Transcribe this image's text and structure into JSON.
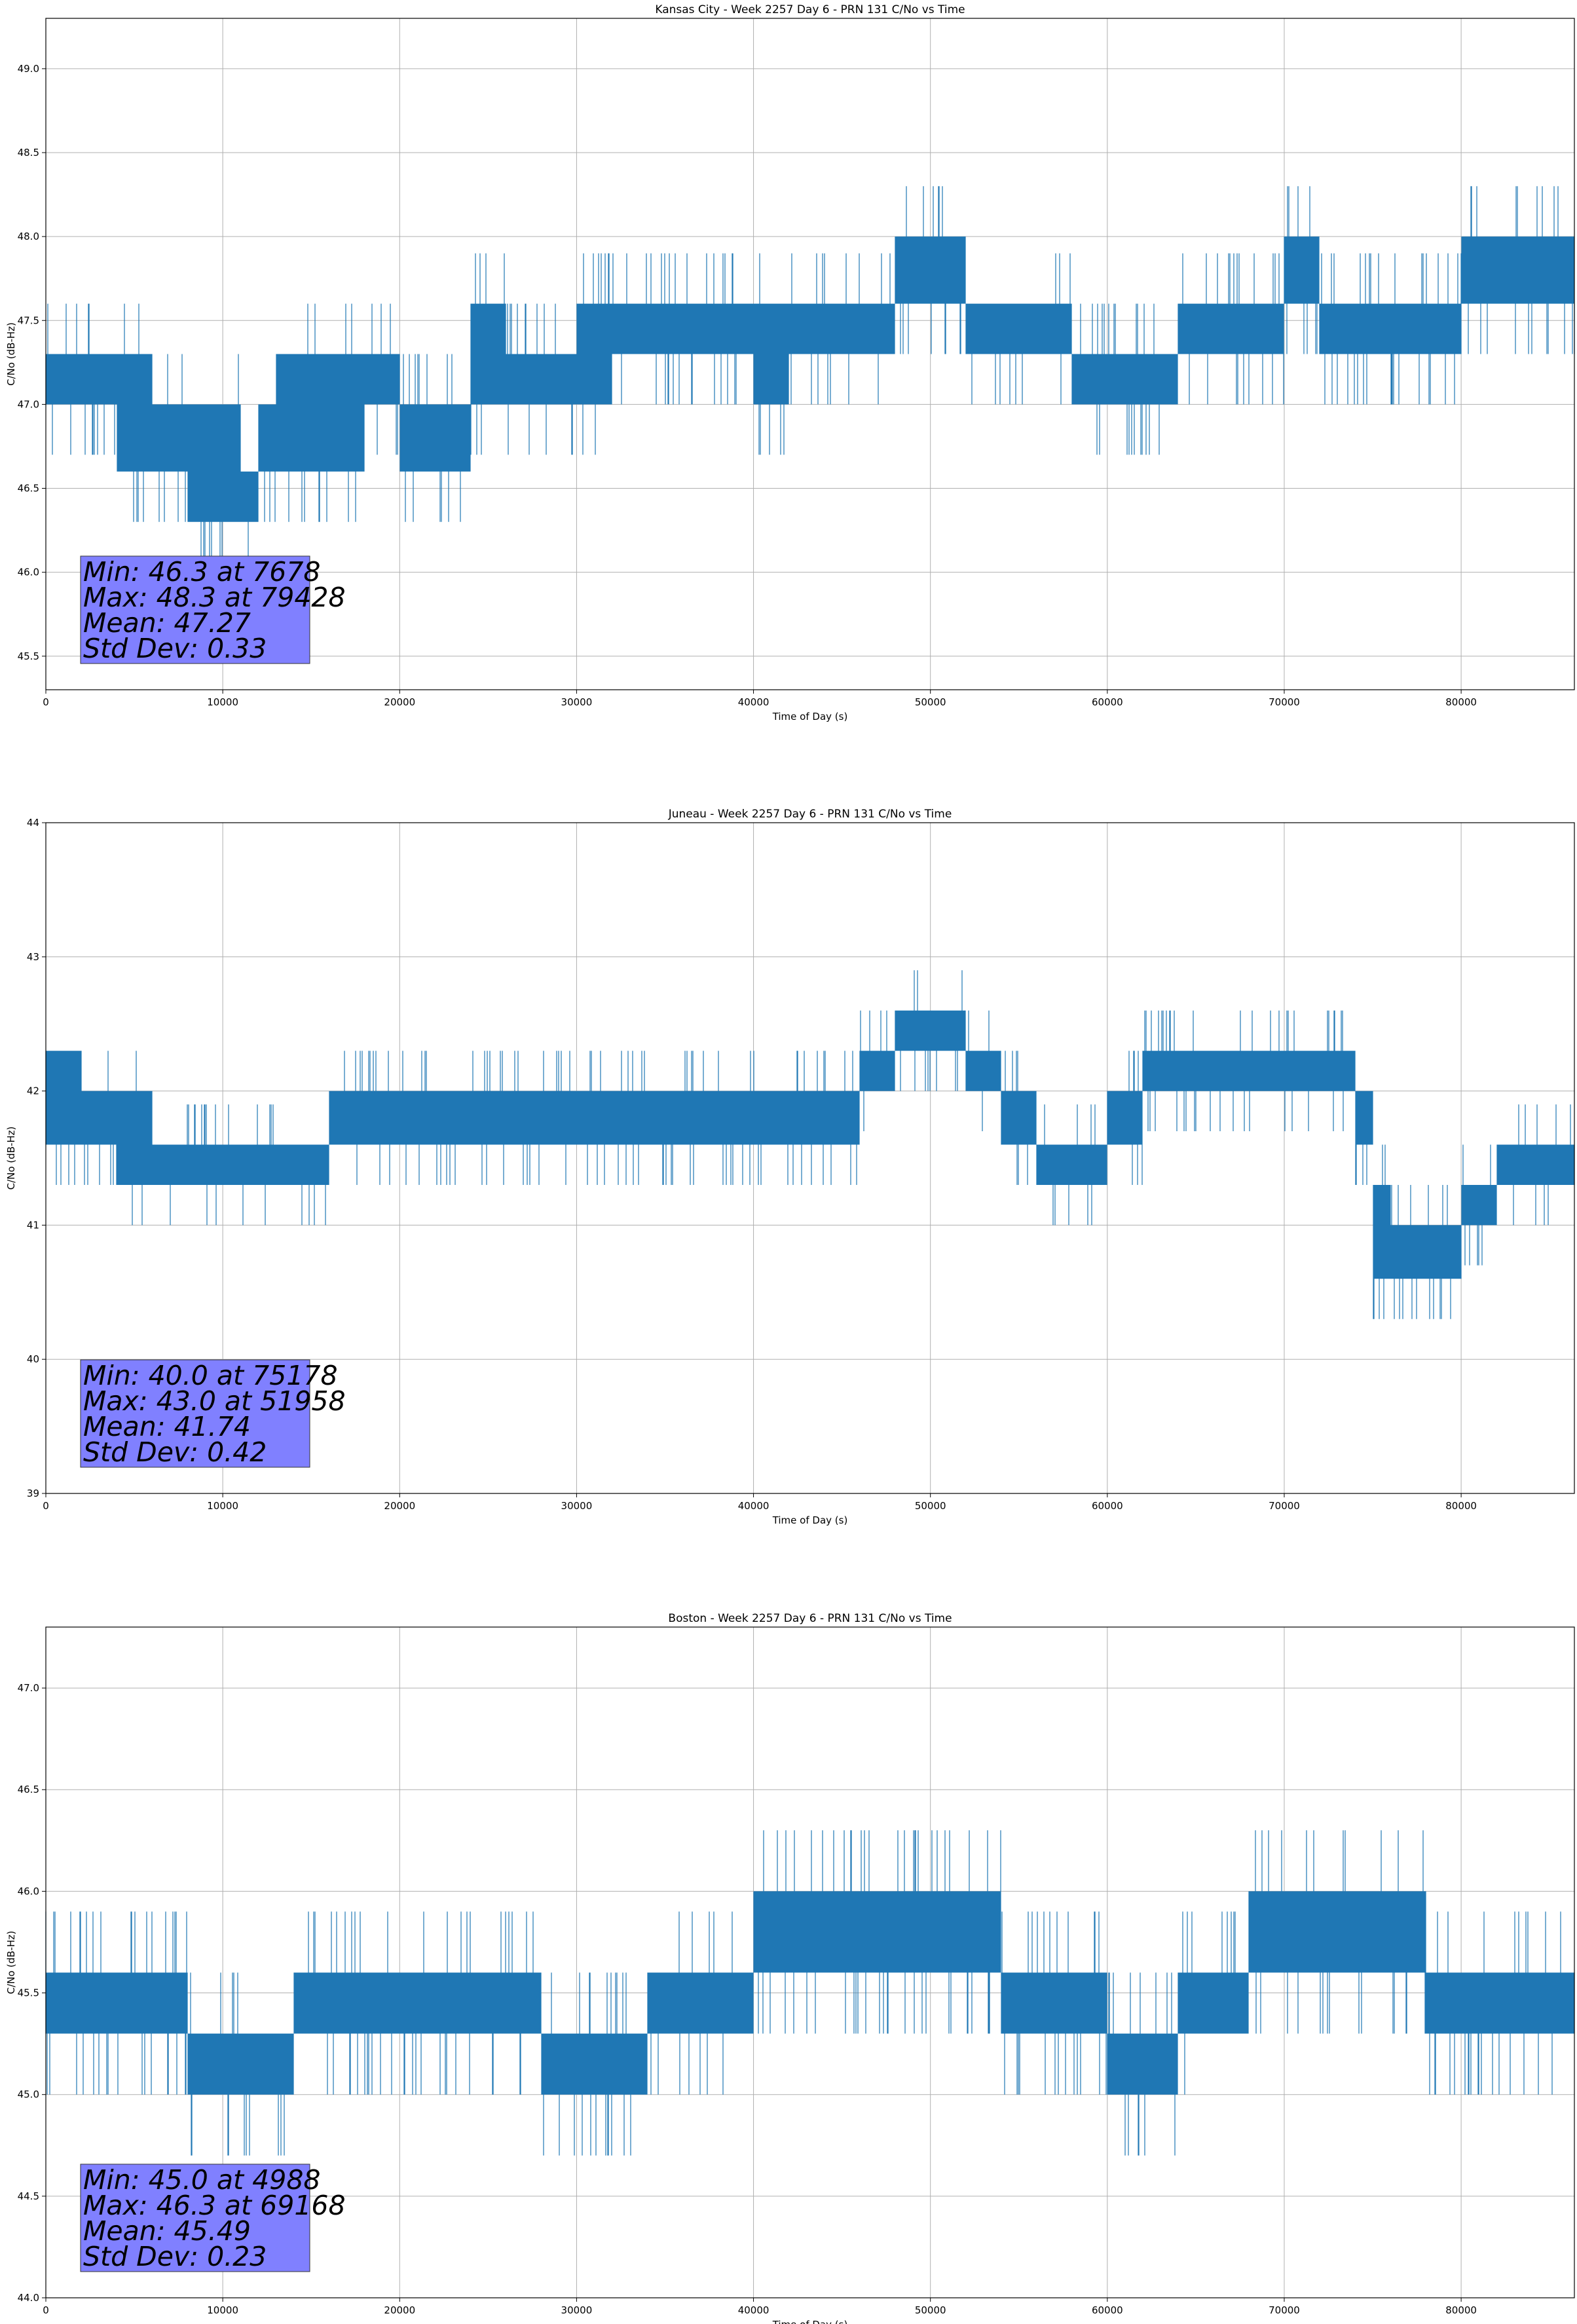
{
  "chart_data": [
    {
      "type": "line",
      "title": "Kansas City - Week 2257 Day 6 - PRN 131 C/No vs Time",
      "xlabel": "Time of Day (s)",
      "ylabel": "C/No (dB-Hz)",
      "xlim": [
        0,
        86400
      ],
      "ylim": [
        45.3,
        49.3
      ],
      "xticks": [
        0,
        10000,
        20000,
        30000,
        40000,
        50000,
        60000,
        70000,
        80000
      ],
      "yticks": [
        45.5,
        46.0,
        46.5,
        47.0,
        47.5,
        48.0,
        48.5,
        49.0
      ],
      "ytick_labels": [
        "45.5",
        "46.0",
        "46.5",
        "47.0",
        "47.5",
        "48.0",
        "48.5",
        "49.0"
      ],
      "grid": true,
      "line_color": "#1f77b4",
      "series": [
        {
          "values": [
            [
              0,
              47.0,
              47.3
            ],
            [
              2000,
              47.0,
              47.3
            ],
            [
              4000,
              46.6,
              47.3
            ],
            [
              6000,
              46.6,
              47.0
            ],
            [
              7000,
              46.6,
              47.0
            ],
            [
              8000,
              46.3,
              47.0
            ],
            [
              9000,
              46.3,
              47.0
            ],
            [
              10000,
              46.3,
              47.0
            ],
            [
              11000,
              46.3,
              46.6
            ],
            [
              12000,
              46.6,
              47.0
            ],
            [
              13000,
              46.6,
              47.3
            ],
            [
              14000,
              46.6,
              47.3
            ],
            [
              16000,
              46.6,
              47.3
            ],
            [
              18000,
              47.0,
              47.3
            ],
            [
              20000,
              46.6,
              47.0
            ],
            [
              22000,
              46.6,
              47.0
            ],
            [
              24000,
              47.0,
              47.6
            ],
            [
              26000,
              47.0,
              47.3
            ],
            [
              28000,
              47.0,
              47.3
            ],
            [
              30000,
              47.0,
              47.6
            ],
            [
              32000,
              47.3,
              47.6
            ],
            [
              34000,
              47.3,
              47.6
            ],
            [
              36000,
              47.3,
              47.6
            ],
            [
              38000,
              47.3,
              47.6
            ],
            [
              40000,
              47.0,
              47.6
            ],
            [
              42000,
              47.3,
              47.6
            ],
            [
              44000,
              47.3,
              47.6
            ],
            [
              46000,
              47.3,
              47.6
            ],
            [
              48000,
              47.6,
              48.0
            ],
            [
              50000,
              47.6,
              48.0
            ],
            [
              52000,
              47.3,
              47.6
            ],
            [
              54000,
              47.3,
              47.6
            ],
            [
              56000,
              47.3,
              47.6
            ],
            [
              58000,
              47.0,
              47.3
            ],
            [
              60000,
              47.0,
              47.3
            ],
            [
              62000,
              47.0,
              47.3
            ],
            [
              64000,
              47.3,
              47.6
            ],
            [
              66000,
              47.3,
              47.6
            ],
            [
              68000,
              47.3,
              47.6
            ],
            [
              70000,
              47.6,
              48.0
            ],
            [
              72000,
              47.3,
              47.6
            ],
            [
              74000,
              47.3,
              47.6
            ],
            [
              76000,
              47.3,
              47.6
            ],
            [
              78000,
              47.3,
              47.6
            ],
            [
              80000,
              47.6,
              48.0
            ],
            [
              82000,
              47.6,
              48.0
            ],
            [
              84000,
              47.6,
              48.0
            ],
            [
              86400,
              47.3,
              47.6
            ]
          ]
        }
      ],
      "stats": [
        "Min: 46.3 at 7678",
        "Max: 48.3 at 79428",
        "Mean: 47.27",
        "Std Dev: 0.33"
      ]
    },
    {
      "type": "line",
      "title": "Juneau - Week 2257 Day 6 - PRN 131 C/No vs Time",
      "xlabel": "Time of Day (s)",
      "ylabel": "C/No (dB-Hz)",
      "xlim": [
        0,
        86400
      ],
      "ylim": [
        39,
        44
      ],
      "xticks": [
        0,
        10000,
        20000,
        30000,
        40000,
        50000,
        60000,
        70000,
        80000
      ],
      "yticks": [
        39,
        40,
        41,
        42,
        43,
        44
      ],
      "ytick_labels": [
        "39",
        "40",
        "41",
        "42",
        "43",
        "44"
      ],
      "grid": true,
      "line_color": "#1f77b4",
      "series": [
        {
          "values": [
            [
              0,
              41.6,
              42.3
            ],
            [
              2000,
              41.6,
              42.0
            ],
            [
              4000,
              41.3,
              42.0
            ],
            [
              6000,
              41.3,
              41.6
            ],
            [
              8000,
              41.3,
              41.6
            ],
            [
              10000,
              41.3,
              41.6
            ],
            [
              12000,
              41.3,
              41.6
            ],
            [
              14000,
              41.3,
              41.6
            ],
            [
              16000,
              41.6,
              42.0
            ],
            [
              18000,
              41.6,
              42.0
            ],
            [
              20000,
              41.6,
              42.0
            ],
            [
              22000,
              41.6,
              42.0
            ],
            [
              24000,
              41.6,
              42.0
            ],
            [
              26000,
              41.6,
              42.0
            ],
            [
              28000,
              41.6,
              42.0
            ],
            [
              30000,
              41.6,
              42.0
            ],
            [
              32000,
              41.6,
              42.0
            ],
            [
              34000,
              41.6,
              42.0
            ],
            [
              36000,
              41.6,
              42.0
            ],
            [
              38000,
              41.6,
              42.0
            ],
            [
              40000,
              41.6,
              42.0
            ],
            [
              42000,
              41.6,
              42.0
            ],
            [
              44000,
              41.6,
              42.0
            ],
            [
              46000,
              42.0,
              42.3
            ],
            [
              48000,
              42.3,
              42.6
            ],
            [
              50000,
              42.3,
              42.6
            ],
            [
              52000,
              42.0,
              42.3
            ],
            [
              54000,
              41.6,
              42.0
            ],
            [
              56000,
              41.3,
              41.6
            ],
            [
              58000,
              41.3,
              41.6
            ],
            [
              60000,
              41.6,
              42.0
            ],
            [
              62000,
              42.0,
              42.3
            ],
            [
              64000,
              42.0,
              42.3
            ],
            [
              66000,
              42.0,
              42.3
            ],
            [
              68000,
              42.0,
              42.3
            ],
            [
              70000,
              42.0,
              42.3
            ],
            [
              72000,
              42.0,
              42.3
            ],
            [
              74000,
              41.6,
              42.0
            ],
            [
              75000,
              40.6,
              41.3
            ],
            [
              76000,
              40.6,
              41.0
            ],
            [
              78000,
              40.6,
              41.0
            ],
            [
              80000,
              41.0,
              41.3
            ],
            [
              82000,
              41.3,
              41.6
            ],
            [
              84000,
              41.3,
              41.6
            ],
            [
              86400,
              41.3,
              41.6
            ]
          ]
        }
      ],
      "stats": [
        "Min: 40.0 at 75178",
        "Max: 43.0 at 51958",
        "Mean: 41.74",
        "Std Dev: 0.42"
      ]
    },
    {
      "type": "line",
      "title": "Boston - Week 2257 Day 6 - PRN 131 C/No vs Time",
      "xlabel": "Time of Day (s)",
      "ylabel": "C/No (dB-Hz)",
      "xlim": [
        0,
        86400
      ],
      "ylim": [
        44.0,
        47.3
      ],
      "xticks": [
        0,
        10000,
        20000,
        30000,
        40000,
        50000,
        60000,
        70000,
        80000
      ],
      "yticks": [
        44.0,
        44.5,
        45.0,
        45.5,
        46.0,
        46.5,
        47.0
      ],
      "ytick_labels": [
        "44.0",
        "44.5",
        "45.0",
        "45.5",
        "46.0",
        "46.5",
        "47.0"
      ],
      "grid": true,
      "line_color": "#1f77b4",
      "series": [
        {
          "values": [
            [
              0,
              45.3,
              45.6
            ],
            [
              2000,
              45.3,
              45.6
            ],
            [
              4000,
              45.3,
              45.6
            ],
            [
              6000,
              45.3,
              45.6
            ],
            [
              8000,
              45.0,
              45.3
            ],
            [
              10000,
              45.0,
              45.3
            ],
            [
              12000,
              45.0,
              45.3
            ],
            [
              14000,
              45.3,
              45.6
            ],
            [
              16000,
              45.3,
              45.6
            ],
            [
              18000,
              45.3,
              45.6
            ],
            [
              20000,
              45.3,
              45.6
            ],
            [
              22000,
              45.3,
              45.6
            ],
            [
              24000,
              45.3,
              45.6
            ],
            [
              26000,
              45.3,
              45.6
            ],
            [
              28000,
              45.0,
              45.3
            ],
            [
              30000,
              45.0,
              45.3
            ],
            [
              32000,
              45.0,
              45.3
            ],
            [
              34000,
              45.3,
              45.6
            ],
            [
              36000,
              45.3,
              45.6
            ],
            [
              38000,
              45.3,
              45.6
            ],
            [
              40000,
              45.6,
              46.0
            ],
            [
              42000,
              45.6,
              46.0
            ],
            [
              44000,
              45.6,
              46.0
            ],
            [
              46000,
              45.6,
              46.0
            ],
            [
              48000,
              45.6,
              46.0
            ],
            [
              50000,
              45.6,
              46.0
            ],
            [
              52000,
              45.6,
              46.0
            ],
            [
              54000,
              45.3,
              45.6
            ],
            [
              56000,
              45.3,
              45.6
            ],
            [
              58000,
              45.3,
              45.6
            ],
            [
              60000,
              45.0,
              45.3
            ],
            [
              62000,
              45.0,
              45.3
            ],
            [
              64000,
              45.3,
              45.6
            ],
            [
              66000,
              45.3,
              45.6
            ],
            [
              68000,
              45.6,
              46.0
            ],
            [
              70000,
              45.6,
              46.0
            ],
            [
              72000,
              45.6,
              46.0
            ],
            [
              74000,
              45.6,
              46.0
            ],
            [
              76000,
              45.6,
              46.0
            ],
            [
              78000,
              45.3,
              45.6
            ],
            [
              80000,
              45.3,
              45.6
            ],
            [
              82000,
              45.3,
              45.6
            ],
            [
              84000,
              45.3,
              45.6
            ],
            [
              86400,
              45.3,
              45.6
            ]
          ]
        }
      ],
      "stats": [
        "Min: 45.0 at 4988",
        "Max: 46.3 at 69168",
        "Mean: 45.49",
        "Std Dev: 0.23"
      ]
    }
  ],
  "colors": {
    "line": "#1f77b4",
    "grid": "#b0b0b0",
    "stats_box_fill": "#8080ff",
    "axes": "#000000"
  }
}
